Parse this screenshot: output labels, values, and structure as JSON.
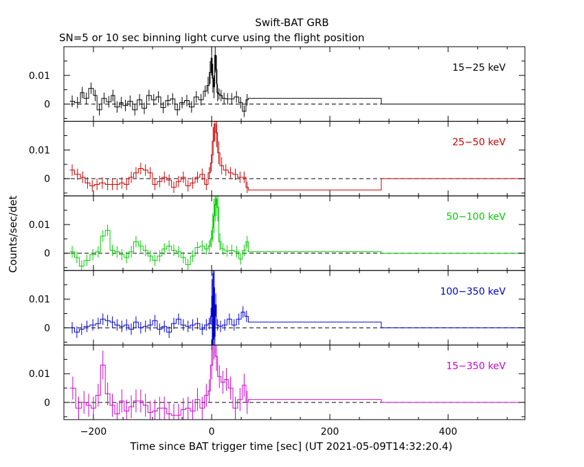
{
  "title": "Swift-BAT GRB",
  "subtitle": "SN=5 or 10 sec binning light curve using the flight position",
  "chart_data": {
    "type": "line",
    "title": "Swift-BAT GRB",
    "subtitle": "SN=5 or 10 sec binning light curve using the flight position",
    "xlabel": "Time since BAT trigger time [sec] (UT 2021-05-09T14:32:20.4)",
    "ylabel": "Counts/sec/det",
    "xlim": [
      -250,
      530
    ],
    "x_ticks": [
      -200,
      0,
      200,
      400
    ],
    "x_tick_labels": [
      "−200",
      "0",
      "200",
      "400"
    ],
    "y_ticks": [
      0,
      0.01
    ],
    "y_tick_labels": [
      "0",
      "0.01"
    ],
    "zero_line": "dashed",
    "panels": [
      {
        "name": "15−25 keV",
        "color": "#000000",
        "ylim": [
          -0.006,
          0.02
        ],
        "x": [
          -240,
          -232,
          -222,
          -216,
          -208,
          -200,
          -194,
          -186,
          -178,
          -170,
          -164,
          -156,
          -150,
          -142,
          -134,
          -126,
          -118,
          -110,
          -102,
          -94,
          -86,
          -78,
          -70,
          -62,
          -54,
          -46,
          -38,
          -30,
          -22,
          -14,
          -8,
          -4,
          -1,
          1,
          3,
          5,
          7,
          9,
          11,
          14,
          18,
          24,
          30,
          38,
          46,
          52,
          58,
          62,
          287,
          530
        ],
        "y": [
          0.001,
          0.0005,
          0.004,
          0.002,
          0.0055,
          0.003,
          -0.002,
          0.002,
          0.0008,
          0.003,
          -0.001,
          0.0005,
          -0.0005,
          0.001,
          -0.002,
          0.0015,
          -0.0015,
          0.003,
          0.0015,
          0.0025,
          -0.0012,
          0.0012,
          0.0018,
          -0.002,
          0.0005,
          0.0012,
          -0.001,
          0.0025,
          0.0015,
          0.0045,
          0.0065,
          0.011,
          0.016,
          0.009,
          0.006,
          0.017,
          0.012,
          0.004,
          0.0035,
          0.003,
          0.002,
          0.0018,
          0.0018,
          0.0025,
          0.0005,
          -0.0025,
          0.0015,
          0.002,
          0,
          0
        ],
        "err": [
          0.002,
          0.002,
          0.002,
          0.002,
          0.002,
          0.002,
          0.002,
          0.002,
          0.002,
          0.002,
          0.002,
          0.002,
          0.002,
          0.002,
          0.002,
          0.002,
          0.002,
          0.002,
          0.002,
          0.002,
          0.002,
          0.002,
          0.002,
          0.002,
          0.002,
          0.002,
          0.002,
          0.002,
          0.002,
          0.002,
          0.003,
          0.004,
          0.006,
          0.005,
          0.004,
          0.006,
          0.005,
          0.003,
          0.002,
          0.002,
          0.002,
          0.002,
          0.002,
          0.002,
          0.002,
          0.002,
          0.002,
          0,
          0,
          0
        ]
      },
      {
        "name": "25−50 keV",
        "color": "#cc0000",
        "ylim": [
          -0.006,
          0.02
        ],
        "x": [
          -240,
          -232,
          -222,
          -214,
          -206,
          -198,
          -190,
          -180,
          -172,
          -164,
          -156,
          -148,
          -140,
          -132,
          -124,
          -116,
          -108,
          -100,
          -92,
          -84,
          -76,
          -68,
          -60,
          -52,
          -44,
          -36,
          -28,
          -20,
          -12,
          -6,
          -2,
          1,
          4,
          7,
          10,
          14,
          20,
          28,
          36,
          44,
          52,
          58,
          62,
          287,
          530
        ],
        "y": [
          0.003,
          0.0015,
          0.0005,
          -0.0015,
          -0.0025,
          -0.002,
          -0.0015,
          -0.002,
          -0.002,
          -0.002,
          -0.0015,
          -0.002,
          0.0005,
          0.002,
          0.0035,
          0.003,
          0.002,
          -0.002,
          -0.001,
          0.0005,
          -0.0005,
          -0.003,
          -0.001,
          0.0005,
          -0.0025,
          -0.0015,
          0.0005,
          0.0015,
          -0.002,
          0.002,
          0.0055,
          0.013,
          0.019,
          0.016,
          0.009,
          0.0045,
          0.003,
          0.002,
          0.0015,
          0.0005,
          0.0005,
          -0.003,
          -0.004,
          0,
          0
        ],
        "err": [
          0.002,
          0.002,
          0.002,
          0.002,
          0.002,
          0.002,
          0.002,
          0.002,
          0.002,
          0.002,
          0.002,
          0.002,
          0.002,
          0.002,
          0.002,
          0.002,
          0.002,
          0.002,
          0.002,
          0.002,
          0.002,
          0.002,
          0.002,
          0.002,
          0.002,
          0.002,
          0.002,
          0.002,
          0.002,
          0.002,
          0.003,
          0.005,
          0.006,
          0.005,
          0.004,
          0.003,
          0.002,
          0.002,
          0.002,
          0.002,
          0.002,
          0.002,
          0,
          0,
          0
        ]
      },
      {
        "name": "50−100 keV",
        "color": "#00cc00",
        "ylim": [
          -0.006,
          0.02
        ],
        "x": [
          -240,
          -232,
          -224,
          -216,
          -206,
          -196,
          -188,
          -180,
          -172,
          -164,
          -156,
          -148,
          -140,
          -132,
          -124,
          -116,
          -108,
          -100,
          -92,
          -84,
          -76,
          -68,
          -60,
          -52,
          -44,
          -36,
          -28,
          -20,
          -12,
          -6,
          -2,
          1,
          3,
          5,
          7,
          9,
          12,
          16,
          22,
          30,
          38,
          46,
          52,
          58,
          62,
          287,
          530
        ],
        "y": [
          0.0005,
          -0.0015,
          -0.0045,
          -0.0025,
          -0.0005,
          0.0005,
          0.006,
          0.008,
          0.001,
          0.0005,
          -0.0005,
          -0.0015,
          0.0005,
          0.004,
          0.0025,
          0.001,
          -0.001,
          -0.0025,
          -0.001,
          0.0015,
          0.0025,
          0.001,
          0.0005,
          -0.0015,
          -0.004,
          -0.001,
          0.002,
          0.0025,
          0.0015,
          0.0025,
          0.005,
          0.009,
          0.013,
          0.017,
          0.019,
          0.016,
          0.004,
          0.0015,
          0.0008,
          0.001,
          0.0005,
          -0.002,
          0.001,
          0.004,
          0.0005,
          0,
          0
        ],
        "err": [
          0.002,
          0.002,
          0.002,
          0.002,
          0.002,
          0.002,
          0.002,
          0.002,
          0.002,
          0.002,
          0.002,
          0.002,
          0.002,
          0.002,
          0.002,
          0.002,
          0.002,
          0.002,
          0.002,
          0.002,
          0.002,
          0.002,
          0.002,
          0.002,
          0.002,
          0.002,
          0.002,
          0.002,
          0.002,
          0.002,
          0.003,
          0.005,
          0.006,
          0.006,
          0.006,
          0.005,
          0.003,
          0.002,
          0.002,
          0.002,
          0.002,
          0.002,
          0.002,
          0.002,
          0,
          0,
          0
        ]
      },
      {
        "name": "100−350 keV",
        "color": "#0000cc",
        "ylim": [
          -0.006,
          0.02
        ],
        "x": [
          -240,
          -232,
          -224,
          -216,
          -206,
          -196,
          -188,
          -180,
          -172,
          -164,
          -156,
          -148,
          -140,
          -132,
          -124,
          -116,
          -108,
          -100,
          -92,
          -84,
          -76,
          -68,
          -60,
          -52,
          -44,
          -36,
          -28,
          -20,
          -12,
          -6,
          -2,
          0,
          1,
          2,
          3,
          4,
          5,
          6,
          8,
          12,
          18,
          26,
          34,
          42,
          50,
          56,
          62,
          287,
          530
        ],
        "y": [
          0,
          -0.0015,
          -0.0005,
          0.0005,
          0.001,
          0.0015,
          0.003,
          0.0025,
          0.002,
          0.001,
          0.0005,
          0.001,
          -0.0005,
          0.002,
          0,
          0.0005,
          0.001,
          0.0025,
          -0.0005,
          0.0005,
          -0.0015,
          0.0015,
          0.003,
          0.001,
          0.0005,
          0.001,
          0.0015,
          -0.0005,
          0.001,
          0.0015,
          0.004,
          0.011,
          -0.006,
          0.019,
          -0.004,
          0.014,
          -0.003,
          0.008,
          0.001,
          0.0005,
          0.001,
          0.003,
          0.001,
          0.003,
          0.0055,
          0.004,
          0.002,
          0,
          0
        ],
        "err": [
          0.002,
          0.002,
          0.002,
          0.002,
          0.002,
          0.002,
          0.002,
          0.002,
          0.002,
          0.002,
          0.002,
          0.002,
          0.002,
          0.002,
          0.002,
          0.002,
          0.002,
          0.002,
          0.002,
          0.002,
          0.002,
          0.002,
          0.002,
          0.002,
          0.002,
          0.002,
          0.002,
          0.002,
          0.002,
          0.002,
          0.003,
          0.006,
          0.006,
          0.006,
          0.006,
          0.006,
          0.006,
          0.004,
          0.002,
          0.002,
          0.002,
          0.002,
          0.002,
          0.002,
          0.002,
          0.002,
          0,
          0,
          0
        ]
      },
      {
        "name": "15−350 keV",
        "color": "#cc00cc",
        "ylim": [
          -0.006,
          0.02
        ],
        "x": [
          -240,
          -230,
          -220,
          -212,
          -204,
          -196,
          -188,
          -180,
          -172,
          -164,
          -156,
          -148,
          -140,
          -132,
          -124,
          -116,
          -108,
          -100,
          -92,
          -84,
          -76,
          -68,
          -60,
          -52,
          -44,
          -36,
          -28,
          -20,
          -12,
          -6,
          -2,
          2,
          6,
          10,
          16,
          22,
          28,
          36,
          44,
          52,
          58,
          62,
          287,
          530
        ],
        "y": [
          0.005,
          -0.002,
          0,
          -0.001,
          -0.002,
          0.0025,
          0.013,
          0.003,
          -0.001,
          -0.004,
          0.0005,
          -0.003,
          -0.0015,
          0.0005,
          0.0005,
          -0.001,
          -0.0035,
          -0.003,
          -0.002,
          -0.002,
          -0.004,
          -0.0045,
          -0.0045,
          -0.0025,
          -0.002,
          -0.003,
          0.001,
          -0.002,
          0.0025,
          0.004,
          0.013,
          0.021,
          0.016,
          0.009,
          0.007,
          0.008,
          0.005,
          -0.002,
          0.001,
          0.006,
          0,
          0.001,
          0,
          0
        ],
        "err": [
          0.004,
          0.004,
          0.004,
          0.004,
          0.004,
          0.004,
          0.005,
          0.004,
          0.004,
          0.004,
          0.004,
          0.004,
          0.004,
          0.004,
          0.004,
          0.004,
          0.004,
          0.004,
          0.004,
          0.004,
          0.004,
          0.004,
          0.004,
          0.004,
          0.004,
          0.004,
          0.004,
          0.004,
          0.004,
          0.004,
          0.005,
          0.006,
          0.005,
          0.004,
          0.004,
          0.004,
          0.004,
          0.004,
          0.004,
          0.004,
          0.004,
          0,
          0,
          0
        ]
      }
    ]
  }
}
